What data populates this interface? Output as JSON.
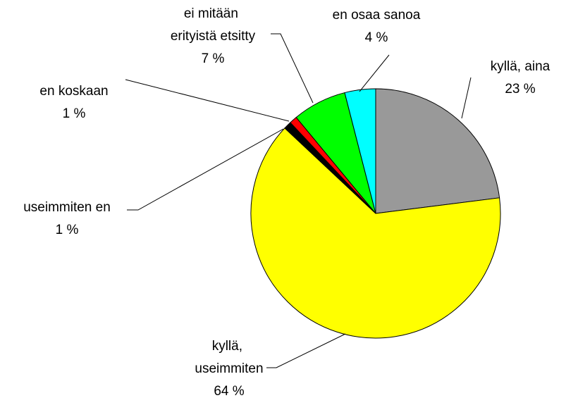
{
  "chart_data": {
    "type": "pie",
    "categories": [
      "kyllä, aina",
      "kyllä, useimmiten",
      "useimmiten en",
      "en koskaan",
      "ei mitään erityistä etsitty",
      "en osaa sanoa"
    ],
    "values": [
      23,
      64,
      1,
      1,
      7,
      4
    ],
    "value_labels": [
      "23 %",
      "64 %",
      "1 %",
      "1 %",
      "7 %",
      "4 %"
    ],
    "colors": [
      "#999999",
      "#ffff00",
      "#000000",
      "#ff0000",
      "#00ff00",
      "#00ffff"
    ]
  }
}
